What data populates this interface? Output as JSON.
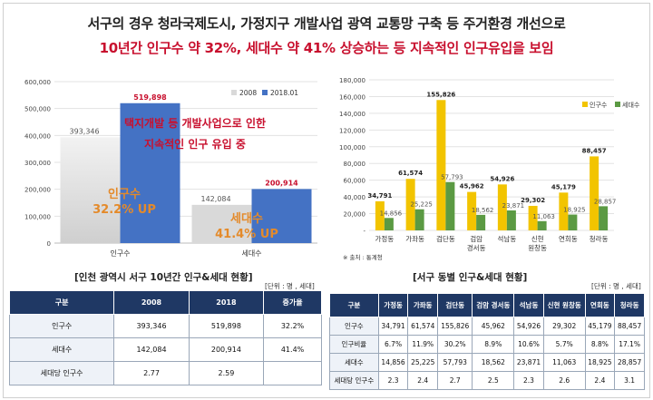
{
  "heading": {
    "line1": "서구의 경우 청라국제도시, 가정지구 개발사업 광역 교통망 구축 등 주거환경 개선으로",
    "line2": "10년간 인구수 약 32%, 세대수 약 41% 상승하는 등 지속적인 인구유입을 보임"
  },
  "chart_data": [
    {
      "type": "bar",
      "categories": [
        "인구수",
        "세대수"
      ],
      "series": [
        {
          "name": "2008",
          "values": [
            393346,
            142084
          ]
        },
        {
          "name": "2018.01",
          "values": [
            519898,
            200914
          ]
        }
      ],
      "ylim": [
        0,
        600000
      ],
      "yticks": [
        "0",
        "100,000",
        "200,000",
        "300,000",
        "400,000",
        "500,000",
        "600,000"
      ],
      "value_labels": [
        "393,346",
        "519,898",
        "142,084",
        "200,914"
      ],
      "colors": {
        "2008": "#d9d9d9",
        "2018.01": "#4472c4"
      },
      "legend": "top-right",
      "annotations": {
        "note_line1": "택지개발 등 개발사업으로 인한",
        "note_line2": "지속적인 인구 유입 중",
        "pop_growth_line1": "인구수",
        "pop_growth_line2": "32.2% UP",
        "hh_growth_line1": "세대수",
        "hh_growth_line2": "41.4% UP"
      }
    },
    {
      "type": "bar",
      "categories": [
        "가정동",
        "가좌동",
        "검단동",
        "검암\n경서동",
        "석남동",
        "신현\n원창동",
        "연희동",
        "청라동"
      ],
      "series": [
        {
          "name": "인구수",
          "values": [
            34791,
            61574,
            155826,
            45962,
            54926,
            29302,
            45179,
            88457
          ]
        },
        {
          "name": "세대수",
          "values": [
            14856,
            25225,
            57793,
            18562,
            23871,
            11063,
            18925,
            28857
          ]
        }
      ],
      "value_labels_pop": [
        "34,791",
        "61,574",
        "155,826",
        "45,962",
        "54,926",
        "29,302",
        "45,179",
        "88,457"
      ],
      "value_labels_hh": [
        "14,856",
        "25,225",
        "57,793",
        "18,562",
        "23,871",
        "11,063",
        "18,925",
        "28,857"
      ],
      "ylim": [
        0,
        180000
      ],
      "yticks": [
        "-",
        "20,000",
        "40,000",
        "60,000",
        "80,000",
        "100,000",
        "120,000",
        "140,000",
        "160,000",
        "180,000"
      ],
      "colors": {
        "인구수": "#f2c400",
        "세대수": "#5b9a43"
      },
      "legend": "top-right",
      "source": "※ 출처 : 통계청"
    }
  ],
  "captions": {
    "left": "[인천 광역시 서구 10년간 인구&세대 현황]",
    "left_unit": "[단위 : 명 , 세대]",
    "right": "[서구 동별 인구&세대 현황]",
    "right_unit": "[단위 : 명 , 세대]"
  },
  "table1": {
    "headers": [
      "구분",
      "2008",
      "2018",
      "증가율"
    ],
    "rows": [
      [
        "인구수",
        "393,346",
        "519,898",
        "32.2%"
      ],
      [
        "세대수",
        "142,084",
        "200,914",
        "41.4%"
      ],
      [
        "세대당 인구수",
        "2.77",
        "2.59",
        ""
      ]
    ]
  },
  "table2": {
    "headers": [
      "구분",
      "가정동",
      "가좌동",
      "검단동",
      "검암 경서동",
      "석남동",
      "신현 원창동",
      "연희동",
      "청라동"
    ],
    "rows": [
      [
        "인구수",
        "34,791",
        "61,574",
        "155,826",
        "45,962",
        "54,926",
        "29,302",
        "45,179",
        "88,457"
      ],
      [
        "인구비율",
        "6.7%",
        "11.9%",
        "30.2%",
        "8.9%",
        "10.6%",
        "5.7%",
        "8.8%",
        "17.1%"
      ],
      [
        "세대수",
        "14,856",
        "25,225",
        "57,793",
        "18,562",
        "23,871",
        "11,063",
        "18,925",
        "28,857"
      ],
      [
        "세대당 인구수",
        "2.3",
        "2.4",
        "2.7",
        "2.5",
        "2.3",
        "2.6",
        "2.4",
        "3.1"
      ]
    ]
  }
}
